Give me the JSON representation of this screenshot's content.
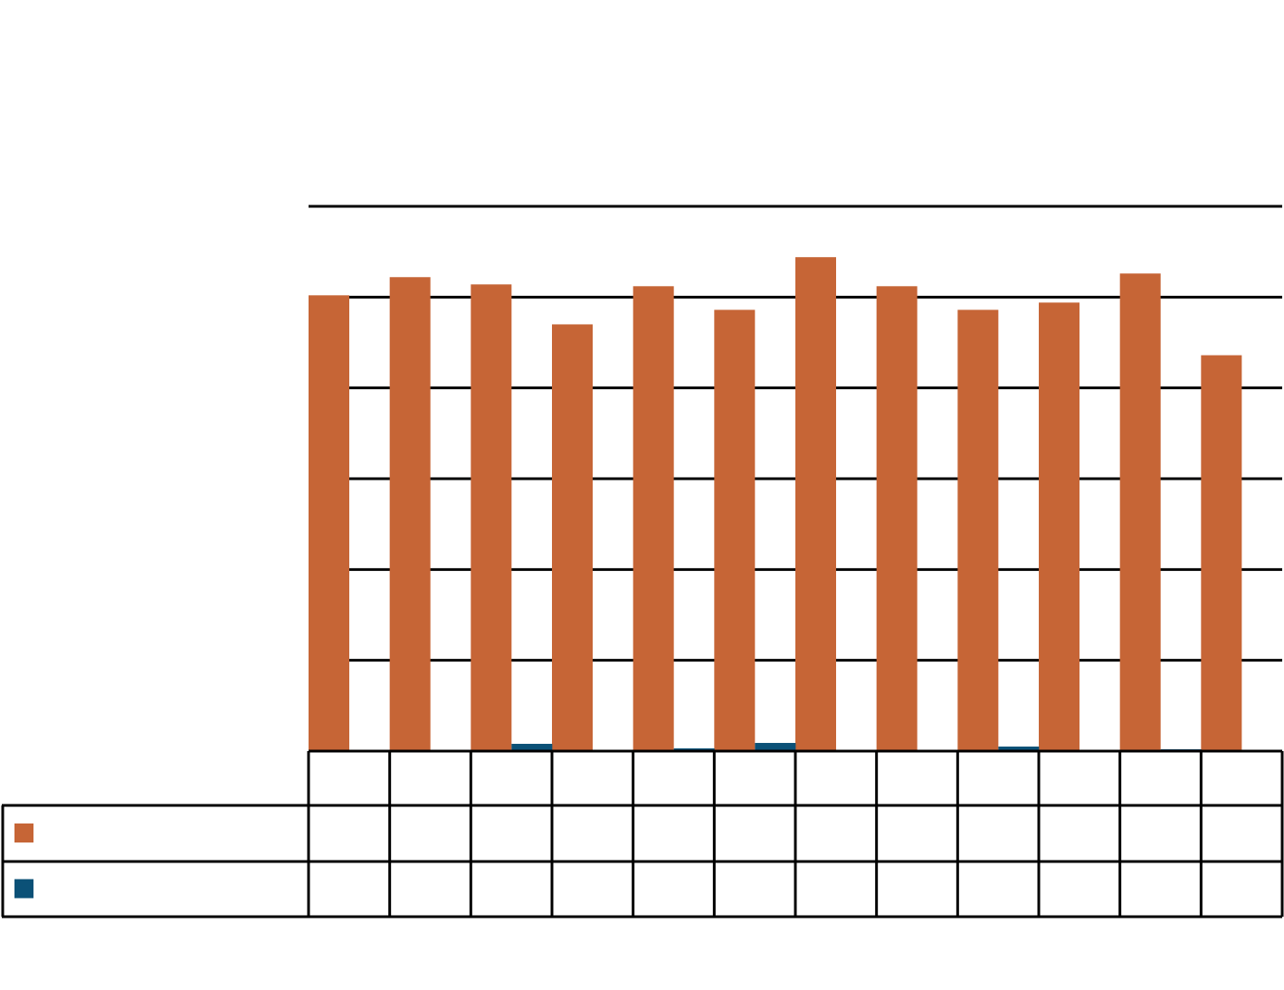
{
  "chart_data": {
    "type": "bar",
    "title": "",
    "xlabel": "",
    "ylabel": "",
    "ylim": [
      0,
      6
    ],
    "y_ticks": [
      0,
      1,
      2,
      3,
      4,
      5,
      6
    ],
    "grid": true,
    "legend": "data-table-left",
    "categories": [
      "",
      "",
      "",
      "",
      "",
      "",
      "",
      "",
      "",
      "",
      "",
      ""
    ],
    "series": [
      {
        "color": "#C66536",
        "values": [
          5.02,
          5.22,
          5.14,
          4.7,
          5.12,
          4.86,
          5.44,
          5.12,
          4.86,
          4.94,
          5.26,
          4.36
        ]
      },
      {
        "color": "#0B5177",
        "values": [
          0.0,
          0.0,
          0.08,
          0.0,
          0.03,
          0.09,
          0.0,
          0.0,
          0.05,
          0.0,
          0.02,
          0.0
        ]
      }
    ]
  }
}
